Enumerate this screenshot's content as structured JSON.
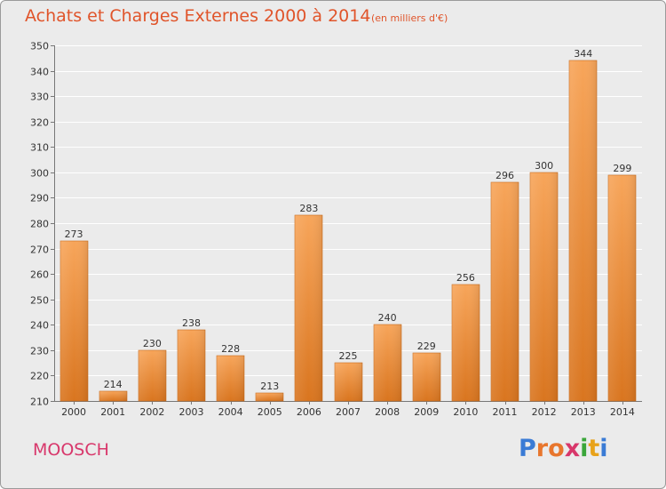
{
  "title": "Achats et Charges Externes 2000 à 2014",
  "subtitle": "(en milliers d'€)",
  "commune": "MOOSCH",
  "logo": {
    "letters": [
      "P",
      "r",
      "o",
      "x",
      "i",
      "t",
      "i"
    ],
    "colors": [
      "#3a7bd5",
      "#e8762d",
      "#e8762d",
      "#d8376b",
      "#3aa63a",
      "#e8a21a",
      "#3a7bd5"
    ]
  },
  "colors": {
    "title": "#e0542a",
    "commune": "#d8376b",
    "bar_light": "#f7a55a",
    "bar_dark": "#d9751f",
    "background": "#ebebeb",
    "grid": "#ffffff"
  },
  "chart_data": {
    "type": "bar",
    "categories": [
      "2000",
      "2001",
      "2002",
      "2003",
      "2004",
      "2005",
      "2006",
      "2007",
      "2008",
      "2009",
      "2010",
      "2011",
      "2012",
      "2013",
      "2014"
    ],
    "values": [
      273,
      214,
      230,
      238,
      228,
      213,
      283,
      225,
      240,
      229,
      256,
      296,
      300,
      344,
      299
    ],
    "data_labels": [
      "273",
      "214",
      "230",
      "238",
      "228",
      "213",
      "283",
      "225",
      "240",
      "229",
      "256",
      "296",
      "300",
      "344",
      "299"
    ],
    "yticks": [
      "210",
      "220",
      "230",
      "240",
      "250",
      "260",
      "270",
      "280",
      "290",
      "300",
      "310",
      "320",
      "330",
      "340",
      "350"
    ],
    "ylim": [
      210,
      350
    ],
    "grid": true,
    "title": "Achats et Charges Externes 2000 à 2014",
    "xlabel": "",
    "ylabel": ""
  }
}
